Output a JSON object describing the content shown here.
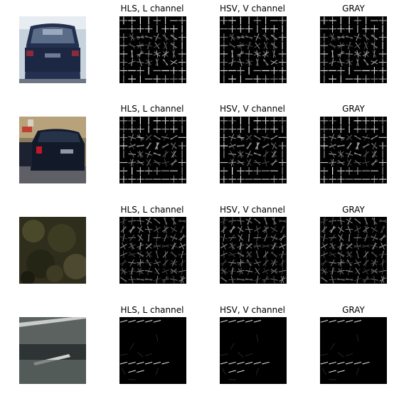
{
  "figure": {
    "background": "#ffffff",
    "titles": {
      "hls": "HLS, L channel",
      "hsv": "HSV, V channel",
      "gray": "GRAY"
    },
    "rows": [
      {
        "sample": "car-rear",
        "hog_pattern": "car"
      },
      {
        "sample": "car-rear-left",
        "hog_pattern": "car"
      },
      {
        "sample": "foliage",
        "hog_pattern": "texture"
      },
      {
        "sample": "road-lane",
        "hog_pattern": "lane"
      }
    ]
  }
}
